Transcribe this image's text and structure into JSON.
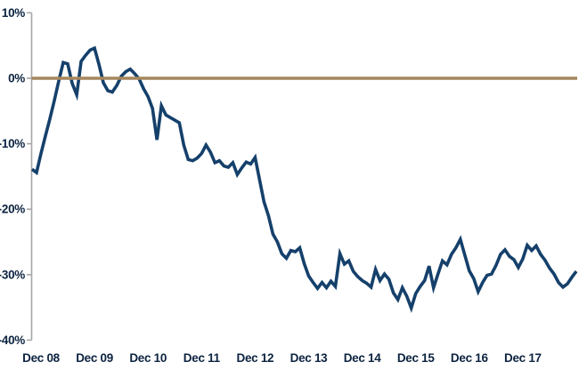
{
  "chart_data": {
    "type": "line",
    "title": "",
    "xlabel": "",
    "ylabel": "",
    "frequency": "monthly",
    "x_unit": "months since Dec 2008",
    "x_start_month_offset": -2,
    "x_range_text": [
      "Oct 2008",
      "Dec 2018"
    ],
    "x_tick_labels": [
      "Dec 08",
      "Dec 09",
      "Dec 10",
      "Dec 11",
      "Dec 12",
      "Dec 13",
      "Dec 14",
      "Dec 15",
      "Dec 16",
      "Dec 17"
    ],
    "y_tick_values": [
      10,
      0,
      -10,
      -20,
      -30,
      -40
    ],
    "y_tick_labels": [
      "10%",
      "0%",
      "-10%",
      "-20%",
      "-30%",
      "-40%"
    ],
    "ylim": [
      -40,
      10
    ],
    "grid": false,
    "legend": "none",
    "zero_line": {
      "value": 0,
      "color": "#A6875D"
    },
    "axis_color": "#A7A7A7",
    "label_color": "#0C2340",
    "series": [
      {
        "name": "cumulative-return-line",
        "color": "#15406B",
        "values": [
          -13.9,
          -14.4,
          -11.5,
          -8.8,
          -6.2,
          -3.4,
          -0.4,
          2.4,
          2.2,
          -0.8,
          -2.5,
          2.6,
          3.5,
          4.3,
          4.6,
          2.1,
          -0.7,
          -1.9,
          -2.1,
          -1.1,
          0.3,
          1.0,
          1.4,
          0.7,
          -0.1,
          -1.6,
          -2.8,
          -4.6,
          -9.4,
          -4.2,
          -5.6,
          -6.0,
          -6.4,
          -6.8,
          -10.2,
          -12.4,
          -12.6,
          -12.2,
          -11.5,
          -10.2,
          -11.3,
          -12.9,
          -12.6,
          -13.4,
          -13.6,
          -12.9,
          -14.7,
          -13.7,
          -12.8,
          -13.1,
          -12.1,
          -15.5,
          -18.9,
          -21.0,
          -23.8,
          -25.0,
          -26.8,
          -27.5,
          -26.3,
          -26.5,
          -25.9,
          -28.3,
          -30.2,
          -31.2,
          -32.1,
          -31.2,
          -32.0,
          -31.0,
          -31.8,
          -26.8,
          -28.4,
          -27.9,
          -29.5,
          -30.3,
          -30.9,
          -31.3,
          -31.9,
          -29.2,
          -30.9,
          -29.9,
          -30.7,
          -32.8,
          -33.8,
          -32.0,
          -33.3,
          -35.1,
          -32.9,
          -31.8,
          -30.9,
          -28.7,
          -32.0,
          -29.9,
          -27.9,
          -28.5,
          -26.9,
          -25.9,
          -24.6,
          -27.0,
          -29.4,
          -30.6,
          -32.6,
          -31.2,
          -30.1,
          -29.9,
          -28.6,
          -26.9,
          -26.2,
          -27.2,
          -27.7,
          -28.9,
          -27.6,
          -25.5,
          -26.3,
          -25.6,
          -26.9,
          -27.8,
          -29.0,
          -29.9,
          -31.2,
          -31.9,
          -31.4,
          -30.4,
          -29.5
        ]
      }
    ]
  }
}
